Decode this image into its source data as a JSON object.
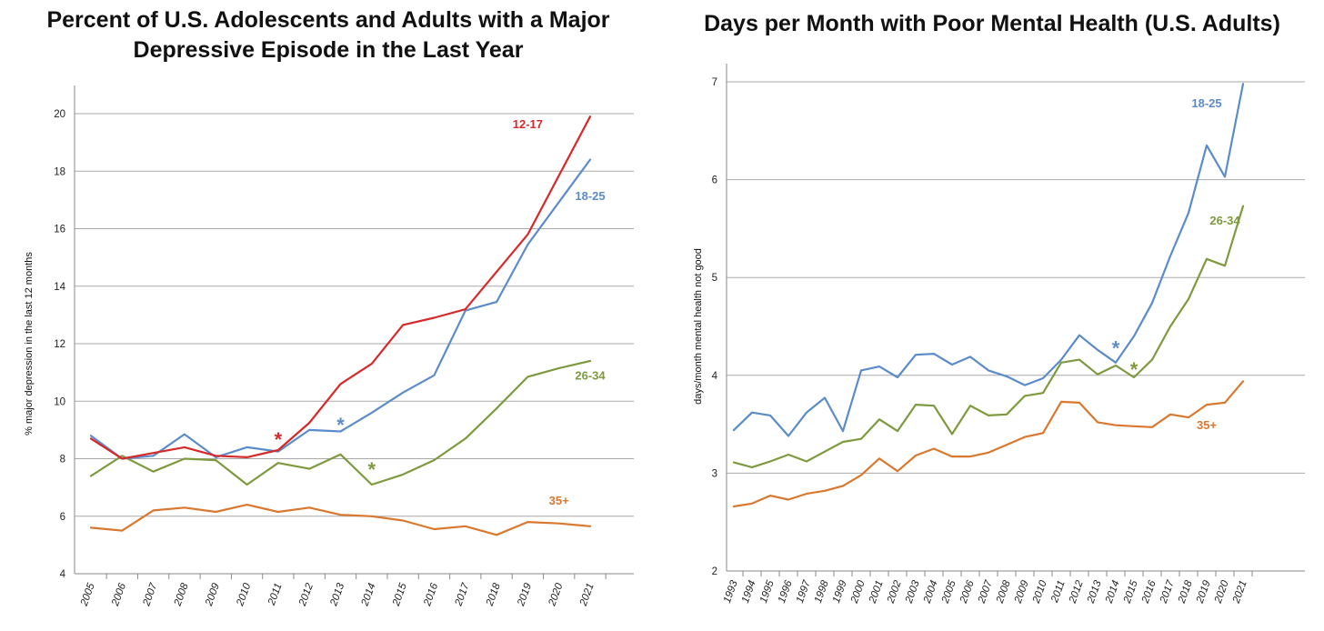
{
  "chart_data": [
    {
      "type": "line",
      "title": "Percent of U.S. Adolescents and Adults with a Major Depressive Episode in the Last Year",
      "title_lines": [
        "Percent of U.S. Adolescents and Adults with a Major",
        "Depressive Episode in the Last Year"
      ],
      "ylabel": "% major depression in the last 12 months",
      "xlabel": "",
      "ylim": [
        4,
        20
      ],
      "yticks": [
        4,
        6,
        8,
        10,
        12,
        14,
        16,
        18,
        20
      ],
      "grid": true,
      "x": [
        "2005",
        "2006",
        "2007",
        "2008",
        "2009",
        "2010",
        "2011",
        "2012",
        "2013",
        "2014",
        "2015",
        "2016",
        "2017",
        "2018",
        "2019",
        "2020",
        "2021"
      ],
      "series": [
        {
          "name": "12-17",
          "color": "#d62a2a",
          "values": [
            8.7,
            8.0,
            8.2,
            8.4,
            8.1,
            8.05,
            8.3,
            9.25,
            10.6,
            11.3,
            12.65,
            12.9,
            13.2,
            14.5,
            15.8,
            null,
            19.9
          ]
        },
        {
          "name": "18-25",
          "color": "#5b8cc9",
          "values": [
            8.8,
            8.0,
            8.1,
            8.85,
            8.05,
            8.4,
            8.25,
            9.0,
            8.95,
            9.6,
            10.3,
            10.9,
            13.15,
            13.45,
            15.45,
            null,
            18.4
          ]
        },
        {
          "name": "26-34",
          "color": "#7e9a3f",
          "values": [
            7.4,
            8.1,
            7.55,
            8.0,
            7.95,
            7.1,
            7.85,
            7.65,
            8.15,
            7.1,
            7.45,
            7.95,
            8.7,
            9.75,
            10.85,
            11.15,
            11.4
          ]
        },
        {
          "name": "35+",
          "color": "#d9782e",
          "values": [
            5.6,
            5.5,
            6.2,
            6.3,
            6.15,
            6.4,
            6.15,
            6.3,
            6.05,
            6.0,
            5.85,
            5.55,
            5.65,
            5.35,
            5.8,
            5.75,
            5.65
          ]
        }
      ],
      "annotations": [
        {
          "text": "*",
          "x": "2011",
          "y": 8.75,
          "color": "#d62a2a"
        },
        {
          "text": "*",
          "x": "2013",
          "y": 9.25,
          "color": "#5b8cc9"
        },
        {
          "text": "*",
          "x": "2014",
          "y": 7.7,
          "color": "#7e9a3f"
        }
      ],
      "series_labels": [
        {
          "text": "12-17",
          "x": "2019",
          "y": 19.5,
          "color": "#d62a2a"
        },
        {
          "text": "18-25",
          "x": "2021",
          "y": 17.0,
          "color": "#5b8cc9"
        },
        {
          "text": "26-34",
          "x": "2021",
          "y": 10.75,
          "color": "#7e9a3f"
        },
        {
          "text": "35+",
          "x": "2020",
          "y": 6.4,
          "color": "#d9782e"
        }
      ]
    },
    {
      "type": "line",
      "title": "Days per Month with Poor Mental Health (U.S. Adults)",
      "ylabel": "days/month mental health not good",
      "xlabel": "",
      "ylim": [
        2,
        7
      ],
      "yticks": [
        2,
        3,
        4,
        5,
        6,
        7
      ],
      "grid": true,
      "x": [
        "1993",
        "1994",
        "1995",
        "1996",
        "1997",
        "1998",
        "1999",
        "2000",
        "2001",
        "2002",
        "2003",
        "2004",
        "2005",
        "2006",
        "2007",
        "2008",
        "2009",
        "2010",
        "2011",
        "2012",
        "2013",
        "2014",
        "2015",
        "2016",
        "2017",
        "2018",
        "2019",
        "2020",
        "2021"
      ],
      "series": [
        {
          "name": "18-25",
          "color": "#5b8cc9",
          "values": [
            3.44,
            3.62,
            3.59,
            3.38,
            3.62,
            3.77,
            3.43,
            4.05,
            4.09,
            3.98,
            4.21,
            4.22,
            4.11,
            4.19,
            4.05,
            3.99,
            3.9,
            3.97,
            4.16,
            4.41,
            4.26,
            4.13,
            4.4,
            4.74,
            5.22,
            5.66,
            6.35,
            6.03,
            6.98
          ]
        },
        {
          "name": "26-34",
          "color": "#7e9a3f",
          "values": [
            3.11,
            3.06,
            3.12,
            3.19,
            3.12,
            3.22,
            3.32,
            3.35,
            3.55,
            3.43,
            3.7,
            3.69,
            3.4,
            3.69,
            3.59,
            3.6,
            3.79,
            3.82,
            4.13,
            4.16,
            4.01,
            4.1,
            3.98,
            4.16,
            4.5,
            4.78,
            5.19,
            5.12,
            5.73
          ]
        },
        {
          "name": "35+",
          "color": "#d9782e",
          "values": [
            2.66,
            2.69,
            2.77,
            2.73,
            2.79,
            2.82,
            2.87,
            2.98,
            3.15,
            3.02,
            3.18,
            3.25,
            3.17,
            3.17,
            3.21,
            3.29,
            3.37,
            3.41,
            3.73,
            3.72,
            3.52,
            3.49,
            3.48,
            3.47,
            3.6,
            3.57,
            3.7,
            3.72,
            3.94
          ]
        }
      ],
      "annotations": [
        {
          "text": "*",
          "x": "2014",
          "y": 4.3,
          "color": "#5b8cc9"
        },
        {
          "text": "*",
          "x": "2015",
          "y": 4.08,
          "color": "#7e9a3f"
        }
      ],
      "series_labels": [
        {
          "text": "18-25",
          "x": "2019",
          "y": 6.74,
          "color": "#5b8cc9"
        },
        {
          "text": "26-34",
          "x": "2020",
          "y": 5.54,
          "color": "#7e9a3f"
        },
        {
          "text": "35+",
          "x": "2019",
          "y": 3.45,
          "color": "#d9782e"
        }
      ]
    }
  ]
}
